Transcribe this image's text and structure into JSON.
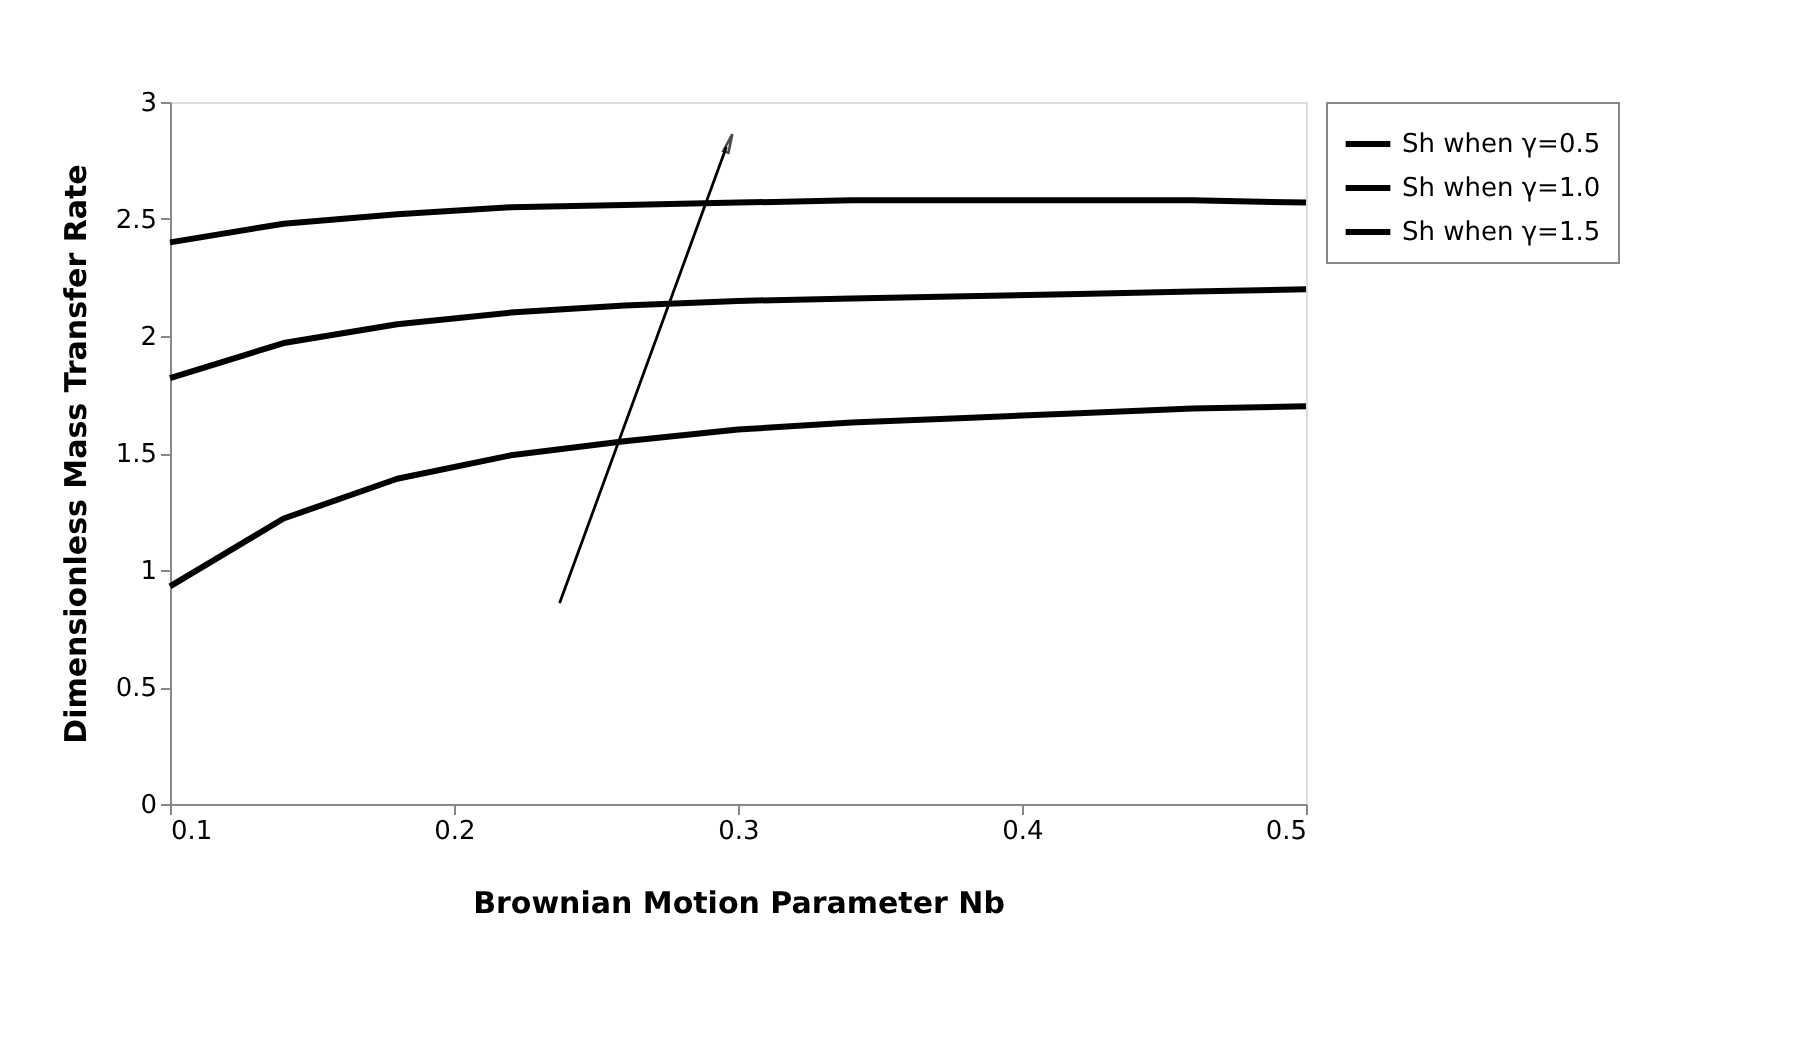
{
  "chart_data": {
    "type": "line",
    "xlabel": "Brownian Motion Parameter Nb",
    "ylabel": "Dimensionless Mass Transfer Rate",
    "x": [
      0.1,
      0.14,
      0.18,
      0.22,
      0.26,
      0.3,
      0.34,
      0.38,
      0.42,
      0.46,
      0.5
    ],
    "series": [
      {
        "name": "Sh when γ=0.5",
        "color": "#000000",
        "values": [
          0.93,
          1.22,
          1.39,
          1.49,
          1.55,
          1.6,
          1.63,
          1.65,
          1.67,
          1.69,
          1.7
        ]
      },
      {
        "name": "Sh when γ=1.0",
        "color": "#000000",
        "values": [
          1.82,
          1.97,
          2.05,
          2.1,
          2.13,
          2.15,
          2.16,
          2.17,
          2.18,
          2.19,
          2.2
        ]
      },
      {
        "name": "Sh when γ=1.5",
        "color": "#000000",
        "values": [
          2.4,
          2.48,
          2.52,
          2.55,
          2.56,
          2.57,
          2.58,
          2.58,
          2.58,
          2.58,
          2.57
        ]
      }
    ],
    "xlim": [
      0.1,
      0.5
    ],
    "xticks": [
      0.1,
      0.2,
      0.3,
      0.4,
      0.5
    ],
    "ylim": [
      0,
      3
    ],
    "yticks": [
      0,
      0.5,
      1,
      1.5,
      2,
      2.5,
      3
    ],
    "grid": false,
    "legend": "right",
    "marker": "none",
    "line_style": "solid"
  }
}
